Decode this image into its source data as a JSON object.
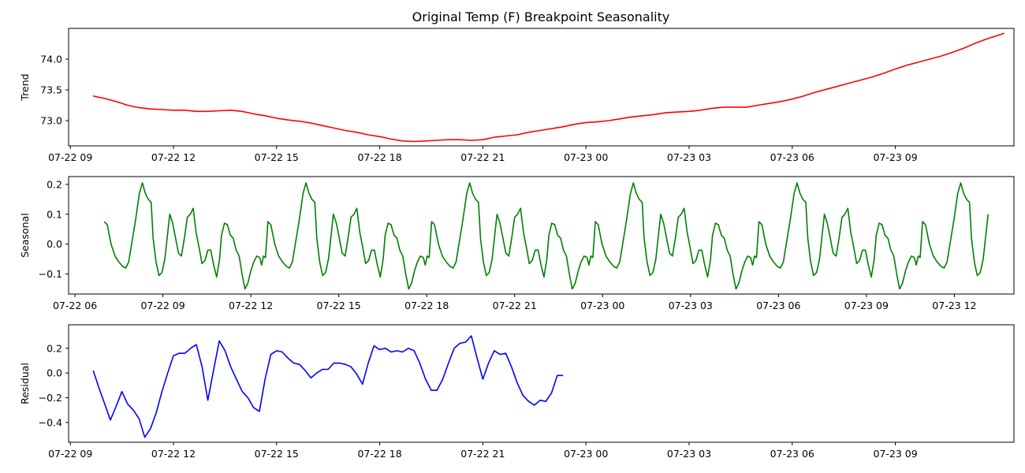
{
  "title": "Original Temp (F) Breakpoint Seasonality",
  "colors": {
    "trend": "#ff0000",
    "seasonal": "#008000",
    "residual": "#0000ff"
  },
  "chart_data": [
    {
      "type": "line",
      "ylabel": "Trend",
      "xlim": [
        "07-22 08:57",
        "07-23 12:27"
      ],
      "ylim": [
        72.59,
        74.5
      ],
      "x_ticks": [
        "07-22 09",
        "07-22 12",
        "07-22 15",
        "07-22 18",
        "07-22 21",
        "07-23 00",
        "07-23 03",
        "07-23 06",
        "07-23 09"
      ],
      "y_ticks": [
        "73.0",
        "73.5",
        "74.0"
      ],
      "y_tick_values": [
        73.0,
        73.5,
        74.0
      ],
      "series": [
        {
          "color": "#ff0000",
          "points": [
            [
              "07-22 09:40",
              73.4
            ],
            [
              "07-22 10:00",
              73.36
            ],
            [
              "07-22 10:20",
              73.31
            ],
            [
              "07-22 10:40",
              73.25
            ],
            [
              "07-22 11:00",
              73.21
            ],
            [
              "07-22 11:20",
              73.19
            ],
            [
              "07-22 11:40",
              73.18
            ],
            [
              "07-22 12:00",
              73.17
            ],
            [
              "07-22 12:20",
              73.17
            ],
            [
              "07-22 12:40",
              73.15
            ],
            [
              "07-22 13:00",
              73.15
            ],
            [
              "07-22 13:20",
              73.16
            ],
            [
              "07-22 13:40",
              73.17
            ],
            [
              "07-22 14:00",
              73.15
            ],
            [
              "07-22 14:20",
              73.11
            ],
            [
              "07-22 14:40",
              73.08
            ],
            [
              "07-22 15:00",
              73.04
            ],
            [
              "07-22 15:20",
              73.01
            ],
            [
              "07-22 15:40",
              72.99
            ],
            [
              "07-22 16:00",
              72.96
            ],
            [
              "07-22 16:20",
              72.92
            ],
            [
              "07-22 16:40",
              72.88
            ],
            [
              "07-22 17:00",
              72.84
            ],
            [
              "07-22 17:20",
              72.81
            ],
            [
              "07-22 17:40",
              72.77
            ],
            [
              "07-22 18:00",
              72.74
            ],
            [
              "07-22 18:20",
              72.7
            ],
            [
              "07-22 18:40",
              72.67
            ],
            [
              "07-22 19:00",
              72.66
            ],
            [
              "07-22 19:20",
              72.67
            ],
            [
              "07-22 19:40",
              72.68
            ],
            [
              "07-22 20:00",
              72.69
            ],
            [
              "07-22 20:20",
              72.69
            ],
            [
              "07-22 20:40",
              72.68
            ],
            [
              "07-22 21:00",
              72.69
            ],
            [
              "07-22 21:20",
              72.73
            ],
            [
              "07-22 21:40",
              72.75
            ],
            [
              "07-22 22:00",
              72.77
            ],
            [
              "07-22 22:20",
              72.81
            ],
            [
              "07-22 22:40",
              72.84
            ],
            [
              "07-22 23:00",
              72.87
            ],
            [
              "07-22 23:20",
              72.9
            ],
            [
              "07-22 23:40",
              72.94
            ],
            [
              "07-23 00:00",
              72.97
            ],
            [
              "07-23 00:20",
              72.98
            ],
            [
              "07-23 00:40",
              73.0
            ],
            [
              "07-23 01:00",
              73.03
            ],
            [
              "07-23 01:20",
              73.06
            ],
            [
              "07-23 01:40",
              73.08
            ],
            [
              "07-23 02:00",
              73.1
            ],
            [
              "07-23 02:20",
              73.13
            ],
            [
              "07-23 02:40",
              73.14
            ],
            [
              "07-23 03:00",
              73.15
            ],
            [
              "07-23 03:20",
              73.17
            ],
            [
              "07-23 03:40",
              73.2
            ],
            [
              "07-23 04:00",
              73.22
            ],
            [
              "07-23 04:20",
              73.22
            ],
            [
              "07-23 04:40",
              73.22
            ],
            [
              "07-23 05:00",
              73.25
            ],
            [
              "07-23 05:20",
              73.28
            ],
            [
              "07-23 05:40",
              73.31
            ],
            [
              "07-23 06:00",
              73.35
            ],
            [
              "07-23 06:20",
              73.4
            ],
            [
              "07-23 06:40",
              73.46
            ],
            [
              "07-23 07:00",
              73.51
            ],
            [
              "07-23 07:20",
              73.56
            ],
            [
              "07-23 07:40",
              73.61
            ],
            [
              "07-23 08:00",
              73.66
            ],
            [
              "07-23 08:20",
              73.71
            ],
            [
              "07-23 08:40",
              73.77
            ],
            [
              "07-23 09:00",
              73.84
            ],
            [
              "07-23 09:20",
              73.9
            ],
            [
              "07-23 09:40",
              73.95
            ],
            [
              "07-23 10:00",
              74.0
            ],
            [
              "07-23 10:20",
              74.05
            ],
            [
              "07-23 10:40",
              74.11
            ],
            [
              "07-23 11:00",
              74.18
            ],
            [
              "07-23 11:20",
              74.26
            ],
            [
              "07-23 11:40",
              74.33
            ],
            [
              "07-23 12:00",
              74.39
            ],
            [
              "07-23 12:10",
              74.42
            ]
          ]
        }
      ]
    },
    {
      "type": "line",
      "ylabel": "Seasonal",
      "xlim": [
        "07-22 05:47",
        "07-23 14:02"
      ],
      "ylim": [
        -0.167,
        0.226
      ],
      "x_ticks": [
        "07-22 06",
        "07-22 09",
        "07-22 12",
        "07-22 15",
        "07-22 18",
        "07-22 21",
        "07-23 00",
        "07-23 03",
        "07-23 06",
        "07-23 09",
        "07-23 12"
      ],
      "y_ticks": [
        "−0.1",
        "0.0",
        "0.1",
        "0.2"
      ],
      "y_tick_values": [
        -0.1,
        0.0,
        0.1,
        0.2
      ],
      "period_minutes": 335,
      "series": [
        {
          "color": "#008000",
          "start": "07-22 07:00",
          "end": "07-23 13:10",
          "one_period": [
            [
              0,
              0.075
            ],
            [
              6,
              0.065
            ],
            [
              14,
              0.0
            ],
            [
              22,
              -0.04
            ],
            [
              30,
              -0.06
            ],
            [
              38,
              -0.075
            ],
            [
              44,
              -0.08
            ],
            [
              50,
              -0.06
            ],
            [
              56,
              0.0
            ],
            [
              64,
              0.08
            ],
            [
              72,
              0.17
            ],
            [
              78,
              0.205
            ],
            [
              84,
              0.17
            ],
            [
              90,
              0.15
            ],
            [
              96,
              0.14
            ],
            [
              100,
              0.02
            ],
            [
              106,
              -0.06
            ],
            [
              112,
              -0.105
            ],
            [
              118,
              -0.095
            ],
            [
              124,
              -0.05
            ],
            [
              130,
              0.04
            ],
            [
              134,
              0.1
            ],
            [
              140,
              0.07
            ],
            [
              146,
              0.02
            ],
            [
              152,
              -0.03
            ],
            [
              158,
              -0.04
            ],
            [
              164,
              0.02
            ],
            [
              170,
              0.09
            ],
            [
              176,
              0.1
            ],
            [
              182,
              0.12
            ],
            [
              188,
              0.04
            ],
            [
              194,
              -0.01
            ],
            [
              200,
              -0.065
            ],
            [
              206,
              -0.055
            ],
            [
              212,
              -0.02
            ],
            [
              218,
              -0.02
            ],
            [
              224,
              -0.07
            ],
            [
              230,
              -0.11
            ],
            [
              236,
              -0.05
            ],
            [
              240,
              0.03
            ],
            [
              246,
              0.07
            ],
            [
              252,
              0.065
            ],
            [
              258,
              0.03
            ],
            [
              264,
              0.02
            ],
            [
              270,
              -0.02
            ],
            [
              276,
              -0.04
            ],
            [
              282,
              -0.1
            ],
            [
              288,
              -0.15
            ],
            [
              294,
              -0.13
            ],
            [
              300,
              -0.09
            ],
            [
              306,
              -0.06
            ],
            [
              312,
              -0.04
            ],
            [
              318,
              -0.045
            ],
            [
              322,
              -0.07
            ],
            [
              326,
              -0.04
            ],
            [
              330,
              -0.045
            ],
            [
              335,
              0.075
            ]
          ]
        }
      ]
    },
    {
      "type": "line",
      "ylabel": "Residual",
      "xlim": [
        "07-22 08:57",
        "07-23 12:27"
      ],
      "ylim": [
        -0.56,
        0.39
      ],
      "x_ticks": [
        "07-22 09",
        "07-22 12",
        "07-22 15",
        "07-22 18",
        "07-22 21",
        "07-23 00",
        "07-23 03",
        "07-23 06",
        "07-23 09"
      ],
      "y_ticks": [
        "−0.4",
        "−0.2",
        "0.0",
        "0.2"
      ],
      "y_tick_values": [
        -0.4,
        -0.2,
        0.0,
        0.2
      ],
      "series": [
        {
          "color": "#0000ff",
          "points": [
            [
              "07-22 09:40",
              0.02
            ],
            [
              "07-22 09:50",
              -0.12
            ],
            [
              "07-22 10:00",
              -0.25
            ],
            [
              "07-22 10:10",
              -0.38
            ],
            [
              "07-22 10:20",
              -0.27
            ],
            [
              "07-22 10:30",
              -0.15
            ],
            [
              "07-22 10:40",
              -0.25
            ],
            [
              "07-22 10:50",
              -0.3
            ],
            [
              "07-22 11:00",
              -0.37
            ],
            [
              "07-22 11:10",
              -0.52
            ],
            [
              "07-22 11:20",
              -0.45
            ],
            [
              "07-22 11:30",
              -0.32
            ],
            [
              "07-22 11:40",
              -0.15
            ],
            [
              "07-22 11:50",
              0.0
            ],
            [
              "07-22 12:00",
              0.14
            ],
            [
              "07-22 12:10",
              0.16
            ],
            [
              "07-22 12:20",
              0.16
            ],
            [
              "07-22 12:30",
              0.2
            ],
            [
              "07-22 12:40",
              0.23
            ],
            [
              "07-22 12:50",
              0.05
            ],
            [
              "07-22 13:00",
              -0.22
            ],
            [
              "07-22 13:10",
              0.02
            ],
            [
              "07-22 13:20",
              0.26
            ],
            [
              "07-22 13:30",
              0.18
            ],
            [
              "07-22 13:40",
              0.05
            ],
            [
              "07-22 13:50",
              -0.05
            ],
            [
              "07-22 14:00",
              -0.15
            ],
            [
              "07-22 14:10",
              -0.2
            ],
            [
              "07-22 14:20",
              -0.28
            ],
            [
              "07-22 14:30",
              -0.31
            ],
            [
              "07-22 14:40",
              -0.05
            ],
            [
              "07-22 14:50",
              0.15
            ],
            [
              "07-22 15:00",
              0.18
            ],
            [
              "07-22 15:10",
              0.17
            ],
            [
              "07-22 15:20",
              0.12
            ],
            [
              "07-22 15:30",
              0.08
            ],
            [
              "07-22 15:40",
              0.07
            ],
            [
              "07-22 15:50",
              0.02
            ],
            [
              "07-22 16:00",
              -0.04
            ],
            [
              "07-22 16:10",
              0.0
            ],
            [
              "07-22 16:20",
              0.03
            ],
            [
              "07-22 16:30",
              0.03
            ],
            [
              "07-22 16:40",
              0.08
            ],
            [
              "07-22 16:50",
              0.08
            ],
            [
              "07-22 17:00",
              0.07
            ],
            [
              "07-22 17:10",
              0.05
            ],
            [
              "07-22 17:20",
              -0.01
            ],
            [
              "07-22 17:30",
              -0.09
            ],
            [
              "07-22 17:40",
              0.08
            ],
            [
              "07-22 17:50",
              0.22
            ],
            [
              "07-22 18:00",
              0.19
            ],
            [
              "07-22 18:10",
              0.2
            ],
            [
              "07-22 18:20",
              0.17
            ],
            [
              "07-22 18:30",
              0.18
            ],
            [
              "07-22 18:40",
              0.17
            ],
            [
              "07-22 18:50",
              0.2
            ],
            [
              "07-22 19:00",
              0.18
            ],
            [
              "07-22 19:10",
              0.08
            ],
            [
              "07-22 19:20",
              -0.05
            ],
            [
              "07-22 19:30",
              -0.14
            ],
            [
              "07-22 19:40",
              -0.14
            ],
            [
              "07-22 19:50",
              -0.05
            ],
            [
              "07-22 20:00",
              0.08
            ],
            [
              "07-22 20:10",
              0.2
            ],
            [
              "07-22 20:20",
              0.24
            ],
            [
              "07-22 20:30",
              0.25
            ],
            [
              "07-22 20:40",
              0.3
            ],
            [
              "07-22 20:50",
              0.12
            ],
            [
              "07-22 21:00",
              -0.05
            ],
            [
              "07-22 21:10",
              0.08
            ],
            [
              "07-22 21:20",
              0.18
            ],
            [
              "07-22 21:30",
              0.15
            ],
            [
              "07-22 21:40",
              0.16
            ],
            [
              "07-22 21:50",
              0.05
            ],
            [
              "07-22 22:00",
              -0.08
            ],
            [
              "07-22 22:10",
              -0.18
            ],
            [
              "07-22 22:20",
              -0.23
            ],
            [
              "07-22 22:30",
              -0.26
            ],
            [
              "07-22 22:40",
              -0.22
            ],
            [
              "07-22 22:50",
              -0.23
            ],
            [
              "07-22 23:00",
              -0.16
            ],
            [
              "07-22 23:10",
              -0.02
            ],
            [
              "07-22 23:20",
              -0.02
            ]
          ]
        }
      ]
    }
  ]
}
